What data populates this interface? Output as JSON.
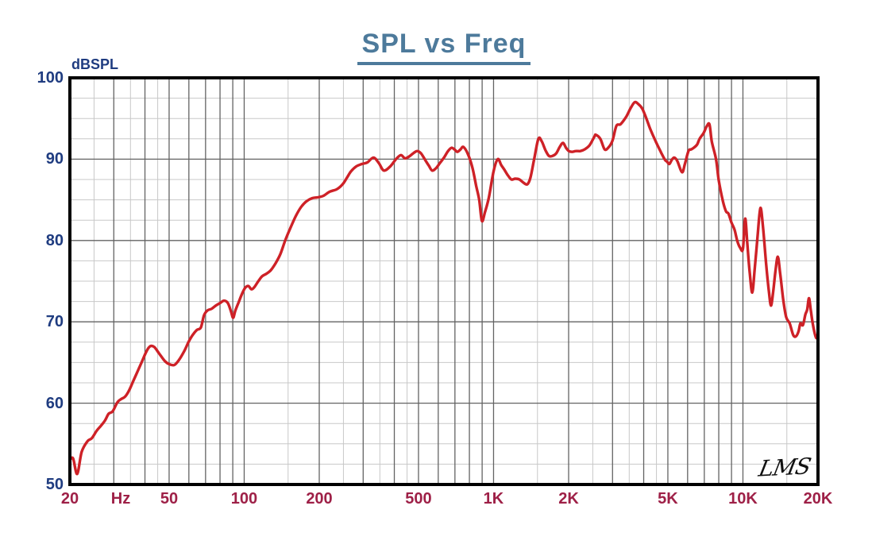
{
  "title": "SPL vs Freq",
  "watermark": "LMS",
  "y_axis": {
    "unit_label": "dBSPL",
    "ticks": [
      {
        "label": "100",
        "value": 100
      },
      {
        "label": "90",
        "value": 90
      },
      {
        "label": "80",
        "value": 80
      },
      {
        "label": "70",
        "value": 70
      },
      {
        "label": "60",
        "value": 60
      },
      {
        "label": "50",
        "value": 50
      }
    ]
  },
  "x_axis": {
    "unit_label": "Hz",
    "ticks": [
      {
        "label": "20",
        "f": 20
      },
      {
        "label": "50",
        "f": 50
      },
      {
        "label": "100",
        "f": 100
      },
      {
        "label": "200",
        "f": 200
      },
      {
        "label": "500",
        "f": 500
      },
      {
        "label": "1K",
        "f": 1000
      },
      {
        "label": "2K",
        "f": 2000
      },
      {
        "label": "5K",
        "f": 5000
      },
      {
        "label": "10K",
        "f": 10000
      },
      {
        "label": "20K",
        "f": 20000
      }
    ]
  },
  "colors": {
    "curve": "#ce2127",
    "title": "#4d7a9b",
    "y_labels": "#1f3c80",
    "x_labels": "#9e2047",
    "grid_major": "#636363",
    "grid_minor": "#c8c8c8",
    "frame": "#000000",
    "background": "#ffffff"
  },
  "chart_data": {
    "type": "line",
    "title": "SPL vs Freq",
    "xlabel": "Hz",
    "ylabel": "dBSPL",
    "x_scale": "log",
    "xlim": [
      20,
      20000
    ],
    "ylim": [
      50,
      100
    ],
    "grid": "on",
    "legend": "none",
    "x_ticks": [
      "20 Hz",
      "50",
      "100",
      "200",
      "500",
      "1K",
      "2K",
      "5K",
      "10K",
      "20K"
    ],
    "y_ticks": [
      50,
      60,
      70,
      80,
      90,
      100
    ],
    "x_gridlines_major": [
      30,
      40,
      50,
      60,
      70,
      80,
      90,
      100,
      200,
      300,
      400,
      500,
      600,
      700,
      800,
      900,
      1000,
      2000,
      3000,
      4000,
      5000,
      6000,
      7000,
      8000,
      9000,
      10000
    ],
    "x_gridlines_minor": [
      25,
      35,
      45,
      150,
      250,
      350,
      450,
      1500,
      2500,
      3500,
      4500,
      15000
    ],
    "y_gridlines_major": [
      60,
      70,
      80,
      90
    ],
    "y_gridlines_minor": [
      52.5,
      55,
      57.5,
      62.5,
      65,
      67.5,
      72.5,
      75,
      77.5,
      82.5,
      85,
      87.5,
      92.5,
      95,
      97.5
    ],
    "series": [
      {
        "name": "SPL",
        "color": "#ce2127",
        "points": [
          [
            20,
            53
          ],
          [
            20.6,
            53.2
          ],
          [
            21.4,
            51.3
          ],
          [
            22.3,
            54
          ],
          [
            23.5,
            55.3
          ],
          [
            24.5,
            55.7
          ],
          [
            25.6,
            56.6
          ],
          [
            26.6,
            57.2
          ],
          [
            27.7,
            57.9
          ],
          [
            28.6,
            58.7
          ],
          [
            29.7,
            59
          ],
          [
            31,
            60.1
          ],
          [
            32.1,
            60.5
          ],
          [
            33.3,
            60.8
          ],
          [
            34.6,
            61.6
          ],
          [
            36,
            62.8
          ],
          [
            37.5,
            64
          ],
          [
            39,
            65.2
          ],
          [
            40.6,
            66.4
          ],
          [
            42,
            67
          ],
          [
            43.6,
            66.9
          ],
          [
            45.6,
            66.1
          ],
          [
            48,
            65.2
          ],
          [
            50,
            64.8
          ],
          [
            52.5,
            64.7
          ],
          [
            55,
            65.4
          ],
          [
            57.5,
            66.4
          ],
          [
            60,
            67.6
          ],
          [
            62.2,
            68.4
          ],
          [
            64.6,
            69
          ],
          [
            67,
            69.3
          ],
          [
            69,
            70.8
          ],
          [
            71.2,
            71.4
          ],
          [
            74,
            71.6
          ],
          [
            77,
            72
          ],
          [
            80,
            72.3
          ],
          [
            83,
            72.6
          ],
          [
            86,
            72.3
          ],
          [
            88.5,
            71.3
          ],
          [
            90.3,
            70.5
          ],
          [
            92.2,
            71.4
          ],
          [
            95,
            72.4
          ],
          [
            98.2,
            73.5
          ],
          [
            101,
            74.2
          ],
          [
            104,
            74.4
          ],
          [
            107,
            74
          ],
          [
            110,
            74.3
          ],
          [
            114,
            75
          ],
          [
            118,
            75.6
          ],
          [
            122.5,
            75.9
          ],
          [
            127.5,
            76.3
          ],
          [
            133,
            77.1
          ],
          [
            139.5,
            78.3
          ],
          [
            146,
            80
          ],
          [
            153,
            81.5
          ],
          [
            161,
            83
          ],
          [
            169,
            84.1
          ],
          [
            177.5,
            84.8
          ],
          [
            187,
            85.2
          ],
          [
            197,
            85.3
          ],
          [
            208,
            85.5
          ],
          [
            220,
            86
          ],
          [
            235,
            86.3
          ],
          [
            248,
            86.9
          ],
          [
            258,
            87.7
          ],
          [
            268,
            88.5
          ],
          [
            281,
            89.1
          ],
          [
            296,
            89.4
          ],
          [
            312,
            89.6
          ],
          [
            330,
            90.2
          ],
          [
            347,
            89.5
          ],
          [
            363,
            88.6
          ],
          [
            385,
            89.1
          ],
          [
            406,
            90
          ],
          [
            425,
            90.5
          ],
          [
            442,
            90.1
          ],
          [
            462,
            90.4
          ],
          [
            480,
            90.8
          ],
          [
            495,
            91
          ],
          [
            512,
            90.7
          ],
          [
            532,
            89.9
          ],
          [
            550,
            89.2
          ],
          [
            567,
            88.6
          ],
          [
            588,
            88.9
          ],
          [
            612,
            89.6
          ],
          [
            633,
            90.2
          ],
          [
            657,
            91
          ],
          [
            678,
            91.4
          ],
          [
            697,
            91.2
          ],
          [
            716,
            90.9
          ],
          [
            737,
            91.2
          ],
          [
            757,
            91.5
          ],
          [
            790,
            90.6
          ],
          [
            822,
            89
          ],
          [
            852,
            86.7
          ],
          [
            876,
            85
          ],
          [
            898,
            82.4
          ],
          [
            924,
            83.5
          ],
          [
            958,
            85.3
          ],
          [
            1000,
            88.5
          ],
          [
            1040,
            90
          ],
          [
            1072,
            89.3
          ],
          [
            1105,
            88.7
          ],
          [
            1142,
            88
          ],
          [
            1180,
            87.5
          ],
          [
            1222,
            87.6
          ],
          [
            1270,
            87.5
          ],
          [
            1320,
            87.1
          ],
          [
            1365,
            86.9
          ],
          [
            1405,
            87.7
          ],
          [
            1455,
            90
          ],
          [
            1512,
            92.5
          ],
          [
            1560,
            92.2
          ],
          [
            1615,
            91.1
          ],
          [
            1668,
            90.4
          ],
          [
            1725,
            90.4
          ],
          [
            1782,
            90.7
          ],
          [
            1842,
            91.5
          ],
          [
            1900,
            92
          ],
          [
            1952,
            91.4
          ],
          [
            2005,
            91
          ],
          [
            2065,
            90.9
          ],
          [
            2140,
            91
          ],
          [
            2230,
            91
          ],
          [
            2320,
            91.2
          ],
          [
            2425,
            91.7
          ],
          [
            2540,
            92.8
          ],
          [
            2570,
            93
          ],
          [
            2680,
            92.5
          ],
          [
            2790,
            91.2
          ],
          [
            2900,
            91.5
          ],
          [
            3000,
            92.3
          ],
          [
            3110,
            94.1
          ],
          [
            3230,
            94.3
          ],
          [
            3400,
            95.2
          ],
          [
            3550,
            96.3
          ],
          [
            3680,
            97
          ],
          [
            3800,
            96.8
          ],
          [
            3950,
            96.2
          ],
          [
            4100,
            95
          ],
          [
            4250,
            93.7
          ],
          [
            4450,
            92.3
          ],
          [
            4700,
            90.8
          ],
          [
            4870,
            89.9
          ],
          [
            4960,
            89.7
          ],
          [
            5070,
            89.4
          ],
          [
            5180,
            89.9
          ],
          [
            5300,
            90.2
          ],
          [
            5450,
            89.8
          ],
          [
            5700,
            88.4
          ],
          [
            5850,
            89.4
          ],
          [
            6050,
            91
          ],
          [
            6200,
            91.2
          ],
          [
            6350,
            91.4
          ],
          [
            6550,
            91.8
          ],
          [
            6700,
            92.5
          ],
          [
            6950,
            93.2
          ],
          [
            7150,
            94
          ],
          [
            7340,
            94.3
          ],
          [
            7500,
            92.2
          ],
          [
            7800,
            90
          ],
          [
            8000,
            87.4
          ],
          [
            8300,
            84.9
          ],
          [
            8550,
            83.6
          ],
          [
            8750,
            83.3
          ],
          [
            9000,
            82.2
          ],
          [
            9260,
            81.3
          ],
          [
            9500,
            79.9
          ],
          [
            9750,
            79.1
          ],
          [
            10000,
            79
          ],
          [
            10210,
            82.7
          ],
          [
            10420,
            79.5
          ],
          [
            10650,
            76
          ],
          [
            10900,
            73.6
          ],
          [
            11150,
            76.5
          ],
          [
            11450,
            80.5
          ],
          [
            11750,
            84
          ],
          [
            12050,
            81.5
          ],
          [
            12400,
            77
          ],
          [
            12700,
            73.8
          ],
          [
            12950,
            72
          ],
          [
            13200,
            73.5
          ],
          [
            13500,
            76.2
          ],
          [
            13800,
            78
          ],
          [
            14100,
            76
          ],
          [
            14500,
            72.8
          ],
          [
            14900,
            70.6
          ],
          [
            15400,
            69.8
          ],
          [
            15900,
            68.4
          ],
          [
            16300,
            68.2
          ],
          [
            16700,
            68.8
          ],
          [
            17000,
            69.8
          ],
          [
            17400,
            69.6
          ],
          [
            17800,
            70.9
          ],
          [
            18100,
            71.5
          ],
          [
            18400,
            72.9
          ],
          [
            18700,
            71.5
          ],
          [
            19000,
            70
          ],
          [
            19400,
            68.6
          ],
          [
            19700,
            68
          ],
          [
            20000,
            68.3
          ]
        ]
      }
    ],
    "annotations": [
      {
        "text": "LMS",
        "position": "bottom-right-inside"
      }
    ]
  }
}
